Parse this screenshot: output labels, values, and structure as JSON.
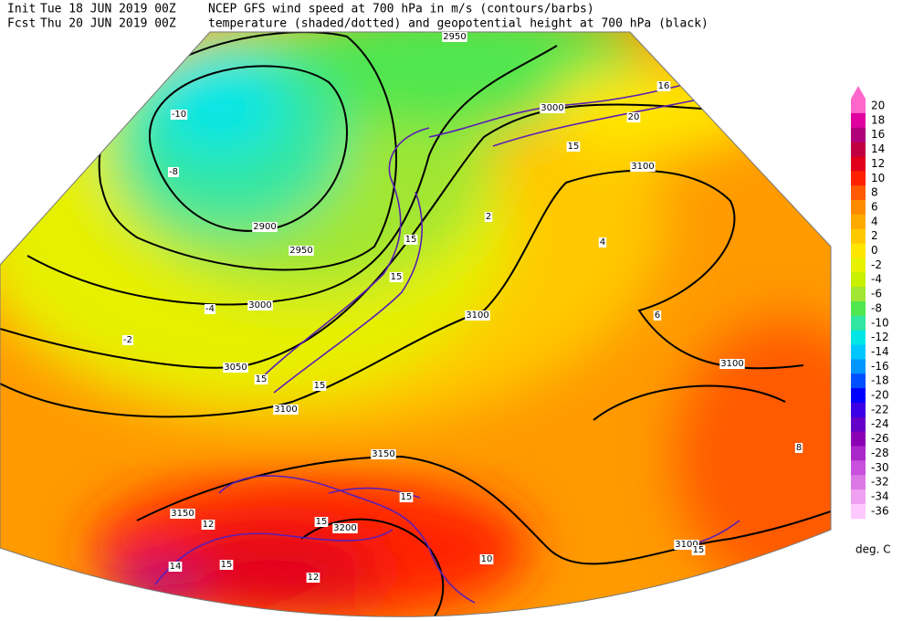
{
  "header": {
    "line1": {
      "label": "Init",
      "date": "Tue 18 JUN 2019 00Z",
      "title": "NCEP GFS wind speed at 700 hPa in m/s (contours/barbs)"
    },
    "line2": {
      "label": "Fcst",
      "date": "Thu 20 JUN 2019 00Z",
      "title": "temperature (shaded/dotted) and geopotential height at 700 hPa (black)"
    }
  },
  "colorbar": {
    "levels": [
      20,
      18,
      16,
      14,
      12,
      10,
      8,
      6,
      4,
      2,
      0,
      -2,
      -4,
      -6,
      -8,
      -10,
      -12,
      -14,
      -16,
      -18,
      -20,
      -22,
      -24,
      -26,
      -28,
      -30,
      -32,
      -34,
      -36
    ],
    "colors": [
      "#ff66cc",
      "#e000a0",
      "#b0007a",
      "#c00040",
      "#e0001a",
      "#ff2000",
      "#ff5a00",
      "#ff8c00",
      "#ffaa00",
      "#ffc800",
      "#ffe600",
      "#e6f000",
      "#c8f000",
      "#a0e632",
      "#50e650",
      "#30e6a0",
      "#00e6e6",
      "#00c8ff",
      "#0096ff",
      "#0050ff",
      "#0000ff",
      "#3c00e6",
      "#6400c8",
      "#8c00b4",
      "#aa28c8",
      "#c850dc",
      "#dc78e6",
      "#f0a0f0",
      "#ffc8ff"
    ],
    "unit": "deg. C"
  },
  "map": {
    "height_labels": [
      2900,
      2950,
      3000,
      3050,
      3100,
      3150,
      3200,
      2950,
      3000,
      3100,
      3100,
      3100,
      3150,
      3100
    ],
    "wind_labels": [
      15,
      15,
      15,
      15,
      15,
      15,
      15,
      15,
      15,
      20,
      16
    ],
    "temperature_labels": [
      -10,
      -8,
      -4,
      -2,
      2,
      4,
      6,
      8,
      10,
      12,
      14,
      12
    ]
  }
}
